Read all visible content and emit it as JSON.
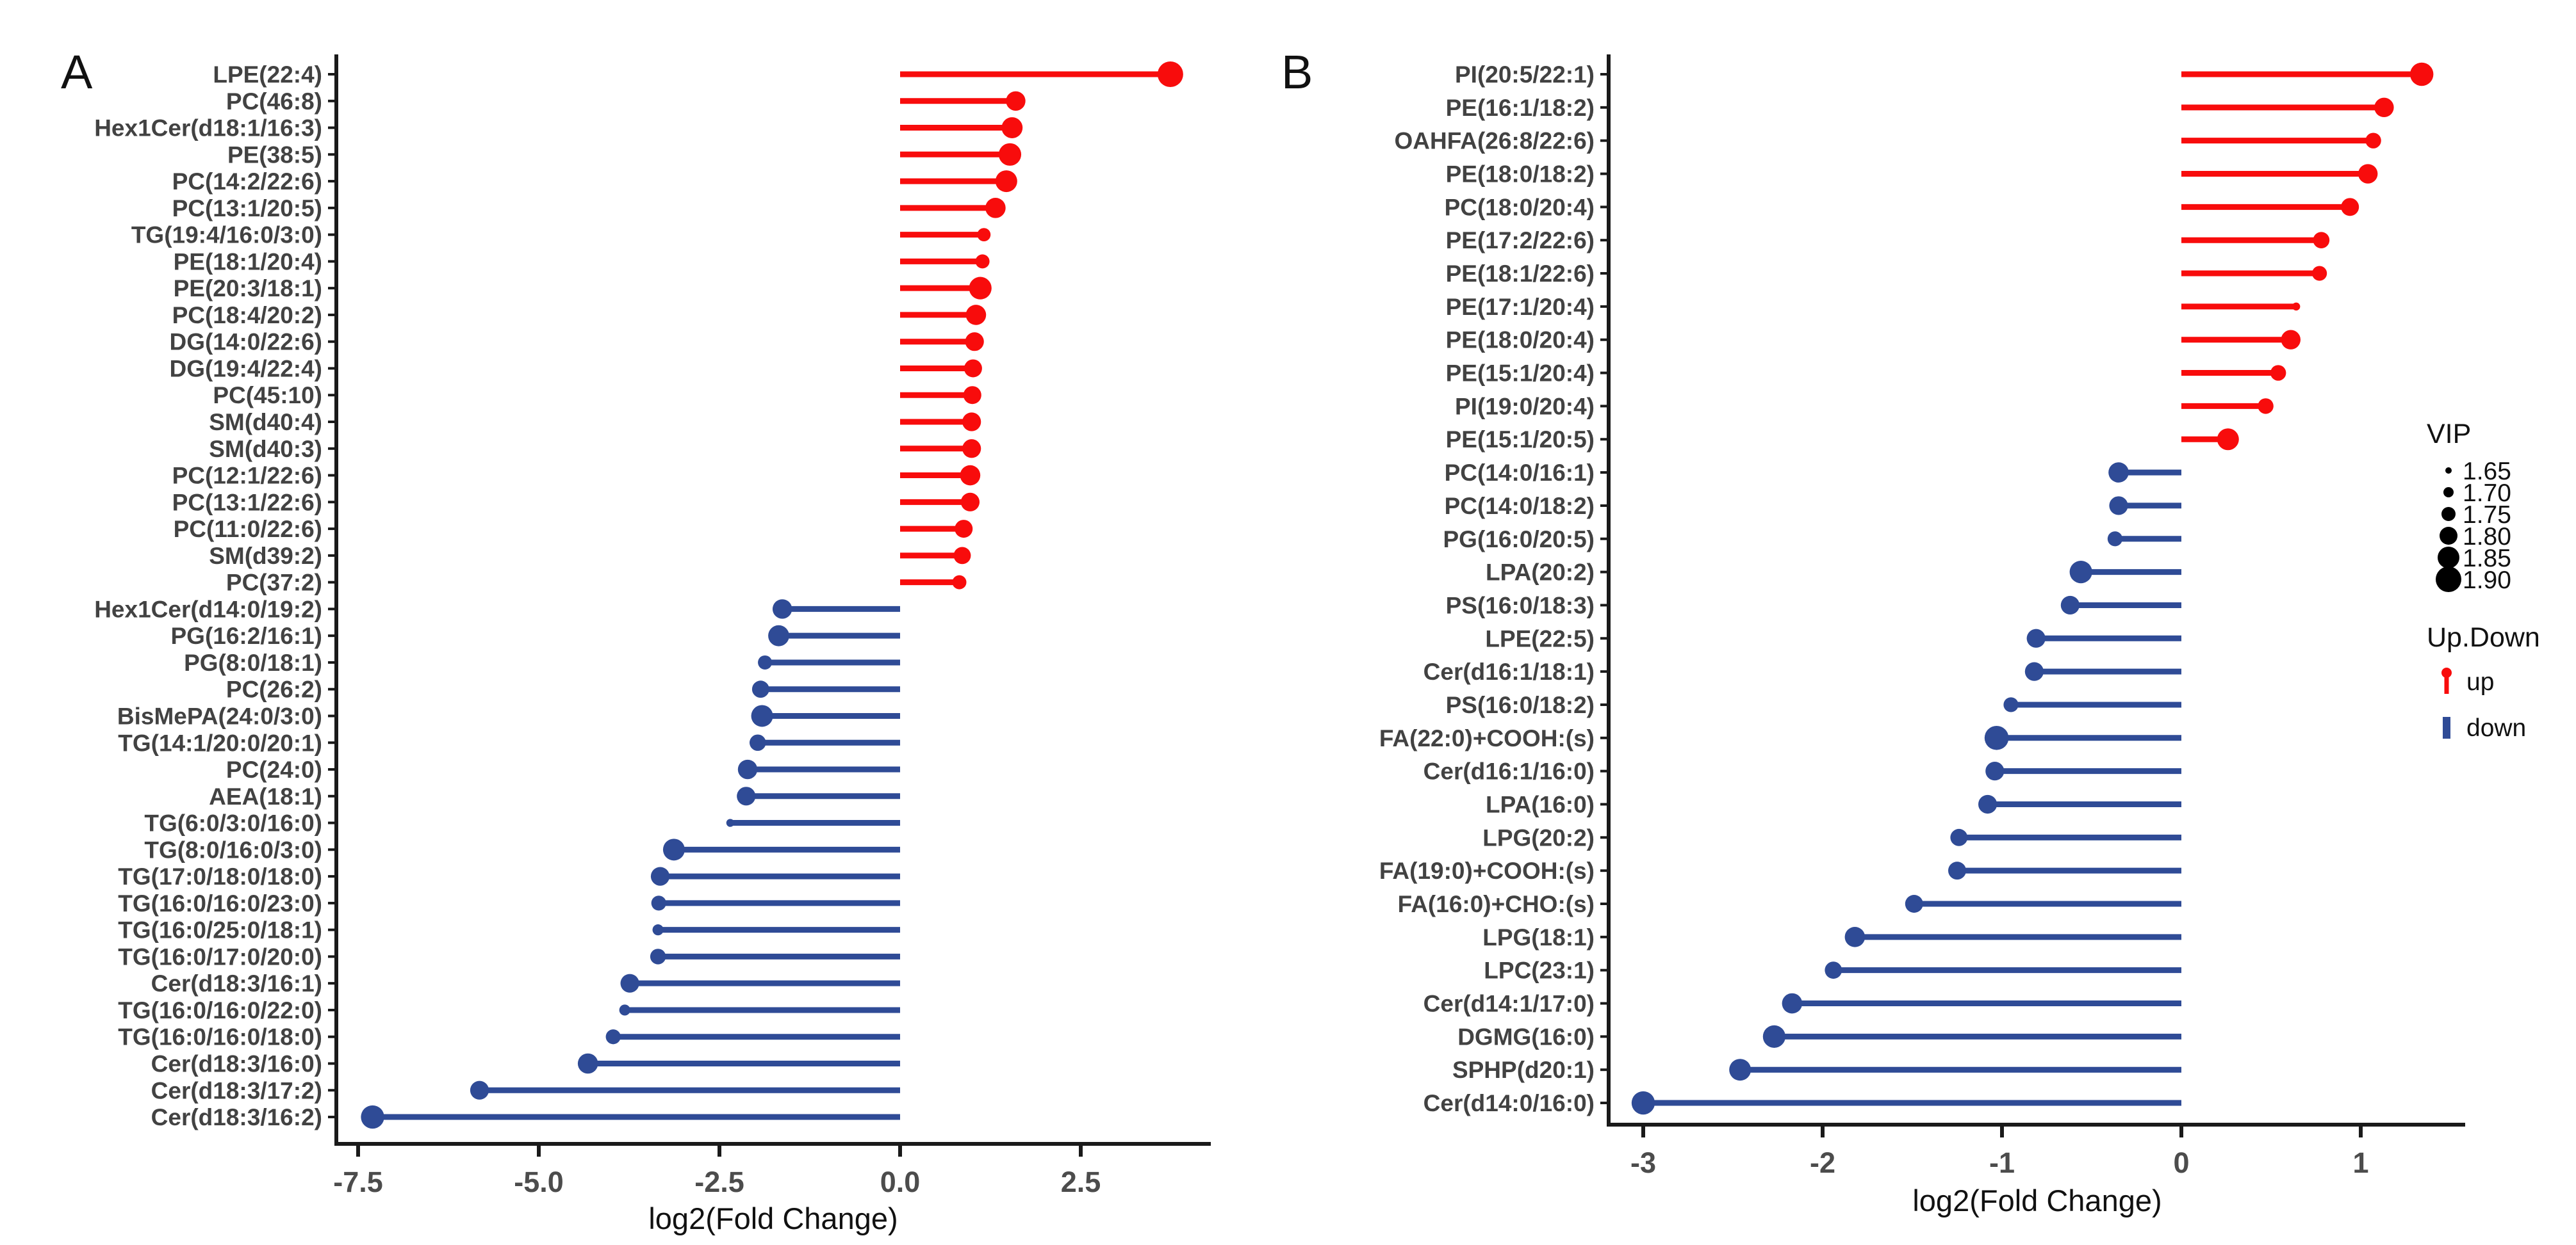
{
  "figure": {
    "panel_a_letter": "A",
    "panel_b_letter": "B"
  },
  "chart_data": [
    {
      "type": "lollipop",
      "letter": "A",
      "xlabel": "log2(Fold Change)",
      "x_domain": [
        -7.85,
        4.3
      ],
      "grid": false,
      "x_ticks": [
        {
          "label": "-7.5",
          "value": -7.5
        },
        {
          "label": "-5.0",
          "value": -5.0
        },
        {
          "label": "-2.5",
          "value": -2.5
        },
        {
          "label": "0.0",
          "value": 0.0
        },
        {
          "label": "2.5",
          "value": 2.5
        }
      ],
      "rows": [
        {
          "label": "LPE(22:4)",
          "value": 3.74,
          "vip": 1.9,
          "direction": "up"
        },
        {
          "label": "PC(46:8)",
          "value": 1.6,
          "vip": 1.82,
          "direction": "up"
        },
        {
          "label": "Hex1Cer(d18:1/16:3)",
          "value": 1.55,
          "vip": 1.84,
          "direction": "up"
        },
        {
          "label": "PE(38:5)",
          "value": 1.52,
          "vip": 1.86,
          "direction": "up"
        },
        {
          "label": "PC(14:2/22:6)",
          "value": 1.47,
          "vip": 1.85,
          "direction": "up"
        },
        {
          "label": "PC(13:1/20:5)",
          "value": 1.32,
          "vip": 1.83,
          "direction": "up"
        },
        {
          "label": "TG(19:4/16:0/3:0)",
          "value": 1.16,
          "vip": 1.74,
          "direction": "up"
        },
        {
          "label": "PE(18:1/20:4)",
          "value": 1.14,
          "vip": 1.75,
          "direction": "up"
        },
        {
          "label": "PE(20:3/18:1)",
          "value": 1.11,
          "vip": 1.86,
          "direction": "up"
        },
        {
          "label": "PC(18:4/20:2)",
          "value": 1.05,
          "vip": 1.83,
          "direction": "up"
        },
        {
          "label": "DG(14:0/22:6)",
          "value": 1.03,
          "vip": 1.81,
          "direction": "up"
        },
        {
          "label": "DG(19:4/22:4)",
          "value": 1.01,
          "vip": 1.8,
          "direction": "up"
        },
        {
          "label": "PC(45:10)",
          "value": 1.0,
          "vip": 1.8,
          "direction": "up"
        },
        {
          "label": "SM(d40:4)",
          "value": 0.99,
          "vip": 1.81,
          "direction": "up"
        },
        {
          "label": "SM(d40:3)",
          "value": 0.99,
          "vip": 1.81,
          "direction": "up"
        },
        {
          "label": "PC(12:1/22:6)",
          "value": 0.97,
          "vip": 1.83,
          "direction": "up"
        },
        {
          "label": "PC(13:1/22:6)",
          "value": 0.97,
          "vip": 1.81,
          "direction": "up"
        },
        {
          "label": "PC(11:0/22:6)",
          "value": 0.88,
          "vip": 1.8,
          "direction": "up"
        },
        {
          "label": "SM(d39:2)",
          "value": 0.86,
          "vip": 1.79,
          "direction": "up"
        },
        {
          "label": "PC(37:2)",
          "value": 0.82,
          "vip": 1.75,
          "direction": "up"
        },
        {
          "label": "Hex1Cer(d14:0/19:2)",
          "value": -1.63,
          "vip": 1.82,
          "direction": "down"
        },
        {
          "label": "PG(16:2/16:1)",
          "value": -1.68,
          "vip": 1.84,
          "direction": "down"
        },
        {
          "label": "PG(8:0/18:1)",
          "value": -1.87,
          "vip": 1.75,
          "direction": "down"
        },
        {
          "label": "PC(26:2)",
          "value": -1.93,
          "vip": 1.79,
          "direction": "down"
        },
        {
          "label": "BisMePA(24:0/3:0)",
          "value": -1.91,
          "vip": 1.85,
          "direction": "down"
        },
        {
          "label": "TG(14:1/20:0/20:1)",
          "value": -1.97,
          "vip": 1.78,
          "direction": "down"
        },
        {
          "label": "PC(24:0)",
          "value": -2.11,
          "vip": 1.82,
          "direction": "down"
        },
        {
          "label": "AEA(18:1)",
          "value": -2.13,
          "vip": 1.81,
          "direction": "down"
        },
        {
          "label": "TG(6:0/3:0/16:0)",
          "value": -2.35,
          "vip": 1.67,
          "direction": "down"
        },
        {
          "label": "TG(8:0/16:0/3:0)",
          "value": -3.13,
          "vip": 1.85,
          "direction": "down"
        },
        {
          "label": "TG(17:0/18:0/18:0)",
          "value": -3.32,
          "vip": 1.81,
          "direction": "down"
        },
        {
          "label": "TG(16:0/16:0/23:0)",
          "value": -3.34,
          "vip": 1.76,
          "direction": "down"
        },
        {
          "label": "TG(16:0/25:0/18:1)",
          "value": -3.35,
          "vip": 1.71,
          "direction": "down"
        },
        {
          "label": "TG(16:0/17:0/20:0)",
          "value": -3.35,
          "vip": 1.77,
          "direction": "down"
        },
        {
          "label": "Cer(d18:3/16:1)",
          "value": -3.74,
          "vip": 1.81,
          "direction": "down"
        },
        {
          "label": "TG(16:0/16:0/22:0)",
          "value": -3.81,
          "vip": 1.71,
          "direction": "down"
        },
        {
          "label": "TG(16:0/16:0/18:0)",
          "value": -3.97,
          "vip": 1.76,
          "direction": "down"
        },
        {
          "label": "Cer(d18:3/16:0)",
          "value": -4.32,
          "vip": 1.83,
          "direction": "down"
        },
        {
          "label": "Cer(d18:3/17:2)",
          "value": -5.82,
          "vip": 1.81,
          "direction": "down"
        },
        {
          "label": "Cer(d18:3/16:2)",
          "value": -7.3,
          "vip": 1.87,
          "direction": "down"
        }
      ]
    },
    {
      "type": "lollipop",
      "letter": "B",
      "xlabel": "log2(Fold Change)",
      "x_domain": [
        -3.19,
        1.58
      ],
      "grid": false,
      "x_ticks": [
        {
          "label": "-3",
          "value": -3
        },
        {
          "label": "-2",
          "value": -2
        },
        {
          "label": "-1",
          "value": -1
        },
        {
          "label": "0",
          "value": 0
        },
        {
          "label": "1",
          "value": 1
        }
      ],
      "rows": [
        {
          "label": "PI(20:5/22:1)",
          "value": 1.34,
          "vip": 1.87,
          "direction": "up"
        },
        {
          "label": "PE(16:1/18:2)",
          "value": 1.13,
          "vip": 1.82,
          "direction": "up"
        },
        {
          "label": "OAHFA(26:8/22:6)",
          "value": 1.07,
          "vip": 1.77,
          "direction": "up"
        },
        {
          "label": "PE(18:0/18:2)",
          "value": 1.04,
          "vip": 1.82,
          "direction": "up"
        },
        {
          "label": "PC(18:0/20:4)",
          "value": 0.94,
          "vip": 1.8,
          "direction": "up"
        },
        {
          "label": "PE(17:2/22:6)",
          "value": 0.78,
          "vip": 1.78,
          "direction": "up"
        },
        {
          "label": "PE(18:1/22:6)",
          "value": 0.77,
          "vip": 1.76,
          "direction": "up"
        },
        {
          "label": "PE(17:1/20:4)",
          "value": 0.64,
          "vip": 1.67,
          "direction": "up"
        },
        {
          "label": "PE(18:0/20:4)",
          "value": 0.61,
          "vip": 1.82,
          "direction": "up"
        },
        {
          "label": "PE(15:1/20:4)",
          "value": 0.54,
          "vip": 1.77,
          "direction": "up"
        },
        {
          "label": "PI(19:0/20:4)",
          "value": 0.47,
          "vip": 1.77,
          "direction": "up"
        },
        {
          "label": "PE(15:1/20:5)",
          "value": 0.26,
          "vip": 1.85,
          "direction": "up"
        },
        {
          "label": "PC(14:0/16:1)",
          "value": -0.35,
          "vip": 1.83,
          "direction": "down"
        },
        {
          "label": "PC(14:0/18:2)",
          "value": -0.35,
          "vip": 1.81,
          "direction": "down"
        },
        {
          "label": "PG(16:0/20:5)",
          "value": -0.37,
          "vip": 1.76,
          "direction": "down"
        },
        {
          "label": "LPA(20:2)",
          "value": -0.56,
          "vip": 1.86,
          "direction": "down"
        },
        {
          "label": "PS(16:0/18:3)",
          "value": -0.62,
          "vip": 1.81,
          "direction": "down"
        },
        {
          "label": "LPE(22:5)",
          "value": -0.81,
          "vip": 1.81,
          "direction": "down"
        },
        {
          "label": "Cer(d16:1/18:1)",
          "value": -0.82,
          "vip": 1.81,
          "direction": "down"
        },
        {
          "label": "PS(16:0/18:2)",
          "value": -0.95,
          "vip": 1.76,
          "direction": "down"
        },
        {
          "label": "FA(22:0)+COOH:(s)",
          "value": -1.03,
          "vip": 1.88,
          "direction": "down"
        },
        {
          "label": "Cer(d16:1/16:0)",
          "value": -1.04,
          "vip": 1.81,
          "direction": "down"
        },
        {
          "label": "LPA(16:0)",
          "value": -1.08,
          "vip": 1.81,
          "direction": "down"
        },
        {
          "label": "LPG(20:2)",
          "value": -1.24,
          "vip": 1.79,
          "direction": "down"
        },
        {
          "label": "FA(19:0)+COOH:(s)",
          "value": -1.25,
          "vip": 1.8,
          "direction": "down"
        },
        {
          "label": "FA(16:0)+CHO:(s)",
          "value": -1.49,
          "vip": 1.8,
          "direction": "down"
        },
        {
          "label": "LPG(18:1)",
          "value": -1.82,
          "vip": 1.83,
          "direction": "down"
        },
        {
          "label": "LPC(23:1)",
          "value": -1.94,
          "vip": 1.79,
          "direction": "down"
        },
        {
          "label": "Cer(d14:1/17:0)",
          "value": -2.17,
          "vip": 1.83,
          "direction": "down"
        },
        {
          "label": "DGMG(16:0)",
          "value": -2.27,
          "vip": 1.86,
          "direction": "down"
        },
        {
          "label": "SPHP(d20:1)",
          "value": -2.46,
          "vip": 1.85,
          "direction": "down"
        },
        {
          "label": "Cer(d14:0/16:0)",
          "value": -3.0,
          "vip": 1.87,
          "direction": "down"
        }
      ]
    }
  ],
  "legend": {
    "vip_title": "VIP",
    "vip_items": [
      {
        "label": "1.65",
        "vip": 1.65
      },
      {
        "label": "1.70",
        "vip": 1.7
      },
      {
        "label": "1.75",
        "vip": 1.75
      },
      {
        "label": "1.80",
        "vip": 1.8
      },
      {
        "label": "1.85",
        "vip": 1.85
      },
      {
        "label": "1.90",
        "vip": 1.9
      }
    ],
    "updown_title": "Up.Down",
    "up_label": "up",
    "down_label": "down"
  },
  "colors": {
    "up": "#F80C0C",
    "down": "#2F4B96",
    "axis": "#1a1a1a",
    "row_label": "#424242",
    "tick_label": "#4c4c4c"
  }
}
